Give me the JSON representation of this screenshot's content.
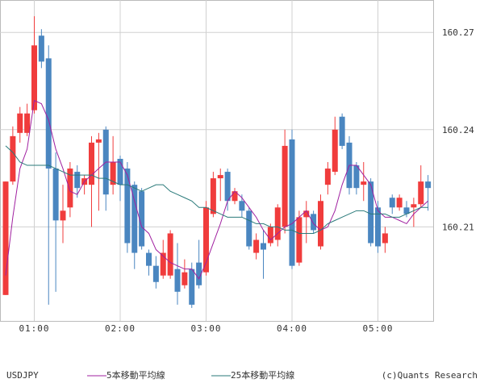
{
  "chart_data": {
    "type": "candlestick",
    "symbol": "USDJPY",
    "credit": "(c)Quants Research",
    "categories": [
      null,
      null,
      null,
      null,
      "01:00",
      null,
      null,
      null,
      null,
      null,
      null,
      null,
      null,
      null,
      null,
      null,
      "02:00",
      null,
      null,
      null,
      null,
      null,
      null,
      null,
      null,
      null,
      null,
      null,
      "03:00",
      null,
      null,
      null,
      null,
      null,
      null,
      null,
      null,
      null,
      null,
      null,
      "04:00",
      null,
      null,
      null,
      null,
      null,
      null,
      null,
      null,
      null,
      null,
      null,
      "05:00",
      null,
      null,
      null,
      null,
      null,
      null,
      null
    ],
    "open": [
      160.189,
      160.224,
      160.239,
      160.239,
      160.246,
      160.269,
      160.262,
      160.228,
      160.212,
      160.216,
      160.227,
      160.223,
      160.223,
      160.236,
      160.24,
      160.223,
      160.231,
      160.228,
      160.223,
      160.221,
      160.202,
      160.198,
      160.195,
      160.195,
      160.197,
      160.192,
      160.197,
      160.199,
      160.196,
      160.214,
      160.225,
      160.227,
      160.218,
      160.218,
      160.215,
      160.202,
      160.205,
      160.205,
      160.206,
      160.21,
      160.237,
      160.199,
      160.213,
      160.214,
      160.204,
      160.223,
      160.227,
      160.244,
      160.236,
      160.229,
      160.223,
      160.224,
      160.216,
      160.205,
      160.219,
      160.216,
      160.216,
      160.216,
      160.217,
      160.224
    ],
    "high": [
      160.224,
      160.241,
      160.247,
      160.248,
      160.275,
      160.271,
      160.266,
      160.233,
      160.223,
      160.23,
      160.229,
      160.226,
      160.238,
      160.239,
      160.241,
      160.238,
      160.232,
      160.23,
      160.224,
      160.222,
      160.203,
      160.201,
      160.206,
      160.209,
      160.205,
      160.2,
      160.199,
      160.206,
      160.218,
      160.227,
      160.228,
      160.228,
      160.222,
      160.22,
      160.216,
      160.208,
      160.209,
      160.211,
      160.217,
      160.24,
      160.24,
      160.215,
      160.218,
      160.215,
      160.22,
      160.23,
      160.244,
      160.245,
      160.238,
      160.23,
      160.23,
      160.225,
      160.218,
      160.21,
      160.22,
      160.22,
      160.218,
      160.219,
      160.229,
      160.226
    ],
    "low": [
      160.189,
      160.223,
      160.236,
      160.238,
      160.245,
      160.259,
      160.186,
      160.19,
      160.205,
      160.213,
      160.219,
      160.22,
      160.21,
      160.215,
      160.215,
      160.22,
      160.218,
      160.202,
      160.197,
      160.203,
      160.195,
      160.191,
      160.194,
      160.194,
      160.186,
      160.191,
      160.185,
      160.191,
      160.195,
      160.213,
      160.218,
      160.215,
      160.217,
      160.213,
      160.203,
      160.2,
      160.194,
      160.204,
      160.204,
      160.208,
      160.197,
      160.198,
      160.205,
      160.208,
      160.203,
      160.22,
      160.226,
      160.234,
      160.22,
      160.22,
      160.218,
      160.204,
      160.202,
      160.202,
      160.214,
      160.215,
      160.213,
      160.21,
      160.216,
      160.215
    ],
    "close": [
      160.224,
      160.238,
      160.245,
      160.245,
      160.266,
      160.261,
      160.228,
      160.212,
      160.215,
      160.228,
      160.222,
      160.225,
      160.236,
      160.237,
      160.22,
      160.23,
      160.223,
      160.205,
      160.202,
      160.204,
      160.198,
      160.193,
      160.202,
      160.208,
      160.19,
      160.196,
      160.186,
      160.192,
      160.216,
      160.225,
      160.226,
      160.218,
      160.221,
      160.215,
      160.204,
      160.206,
      160.203,
      160.21,
      160.216,
      160.235,
      160.198,
      160.213,
      160.215,
      160.209,
      160.218,
      160.228,
      160.24,
      160.235,
      160.222,
      160.222,
      160.224,
      160.205,
      160.204,
      160.208,
      160.216,
      160.219,
      160.214,
      160.217,
      160.224,
      160.222
    ],
    "up_color": "#f03c3c",
    "down_color": "#4a86c0",
    "series": [
      {
        "name": "5本移動平均線",
        "color": "#a020a0",
        "values": [
          160.195,
          160.213,
          160.228,
          160.234,
          160.249,
          160.248,
          160.243,
          160.234,
          160.228,
          160.221,
          160.22,
          160.224,
          160.226,
          160.228,
          160.23,
          160.23,
          160.23,
          160.226,
          160.218,
          160.21,
          160.208,
          160.203,
          160.201,
          160.199,
          160.198,
          160.197,
          160.197,
          160.194,
          160.199,
          160.205,
          160.211,
          160.218,
          160.221,
          160.219,
          160.216,
          160.213,
          160.209,
          160.206,
          160.208,
          160.21,
          160.211,
          160.213,
          160.215,
          160.211,
          160.209,
          160.21,
          160.215,
          160.223,
          160.229,
          160.229,
          160.226,
          160.223,
          160.215,
          160.213,
          160.213,
          160.212,
          160.211,
          160.214,
          160.216,
          160.218
        ]
      },
      {
        "name": "25本移動平均線",
        "color": "#2a7a7a",
        "values": [
          160.235,
          160.233,
          160.23,
          160.229,
          160.229,
          160.229,
          160.229,
          160.228,
          160.227,
          160.226,
          160.226,
          160.226,
          160.226,
          160.225,
          160.225,
          160.224,
          160.223,
          160.223,
          160.222,
          160.221,
          160.222,
          160.223,
          160.223,
          160.221,
          160.22,
          160.219,
          160.218,
          160.216,
          160.216,
          160.215,
          160.214,
          160.213,
          160.213,
          160.213,
          160.212,
          160.211,
          160.211,
          160.21,
          160.21,
          160.209,
          160.209,
          160.208,
          160.208,
          160.208,
          160.209,
          160.211,
          160.212,
          160.213,
          160.214,
          160.215,
          160.215,
          160.214,
          160.214,
          160.214,
          160.213,
          160.213,
          160.214,
          160.215,
          160.216,
          160.216
        ]
      }
    ],
    "ylim": [
      160.181,
      160.28
    ],
    "yticks": [
      160.21,
      160.24,
      160.27
    ],
    "grid": true
  }
}
